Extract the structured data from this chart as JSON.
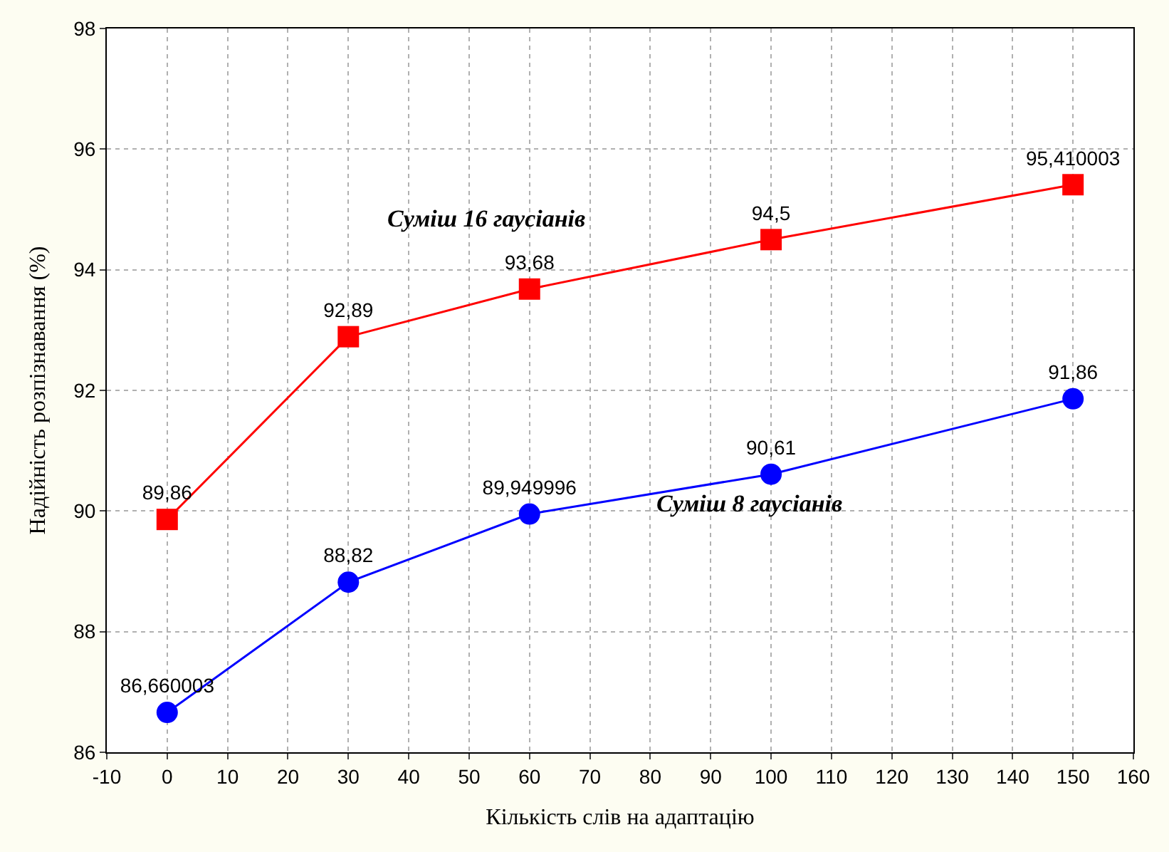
{
  "chart_data": {
    "type": "line",
    "xlabel": "Кількість слів на адаптацію",
    "ylabel": "Надійність розпізнавання (%)",
    "x": [
      0,
      30,
      60,
      100,
      150
    ],
    "series": [
      {
        "name": "Суміш 16 гаусіанів",
        "color": "#ff0000",
        "marker": "square",
        "values": [
          89.86,
          92.89,
          93.68,
          94.5,
          95.410003
        ],
        "value_labels": [
          "89,86",
          "92,89",
          "93,68",
          "94,5",
          "95,410003"
        ]
      },
      {
        "name": "Суміш 8 гаусіанів",
        "color": "#0000ff",
        "marker": "circle",
        "values": [
          86.660003,
          88.82,
          89.949996,
          90.61,
          91.86
        ],
        "value_labels": [
          "86,660003",
          "88,82",
          "89,949996",
          "90,61",
          "91,86"
        ]
      }
    ],
    "xlim": [
      -10,
      160
    ],
    "xticks": [
      -10,
      0,
      10,
      20,
      30,
      40,
      50,
      60,
      70,
      80,
      90,
      100,
      110,
      120,
      130,
      140,
      150,
      160
    ],
    "ylim": [
      86,
      98
    ],
    "yticks": [
      86,
      88,
      90,
      92,
      94,
      96,
      98
    ],
    "grid": true,
    "line_style": "solid",
    "legend": false
  }
}
